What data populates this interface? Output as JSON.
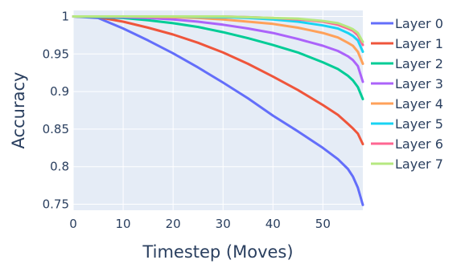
{
  "chart_data": {
    "type": "line",
    "xlabel": "Timestep (Moves)",
    "ylabel": "Accuracy",
    "xlim": [
      0,
      58
    ],
    "ylim": [
      0.742,
      1.008
    ],
    "xticks": [
      0,
      10,
      20,
      30,
      40,
      50
    ],
    "yticks": [
      0.75,
      0.8,
      0.85,
      0.9,
      0.95,
      1
    ],
    "ytick_labels": [
      "0.75",
      "0.8",
      "0.85",
      "0.9",
      "0.95",
      "1"
    ],
    "grid": true,
    "plot_background": "#e5ecf6",
    "legend_position": "right",
    "series": [
      {
        "name": "Layer 0",
        "color": "#636efa",
        "x": [
          0,
          5,
          10,
          15,
          20,
          25,
          30,
          35,
          40,
          45,
          50,
          53,
          55,
          56,
          57,
          58
        ],
        "y": [
          1.0,
          0.998,
          0.984,
          0.968,
          0.951,
          0.932,
          0.912,
          0.891,
          0.868,
          0.847,
          0.825,
          0.81,
          0.797,
          0.787,
          0.772,
          0.749
        ]
      },
      {
        "name": "Layer 1",
        "color": "#ef553b",
        "x": [
          0,
          5,
          10,
          15,
          20,
          25,
          30,
          35,
          40,
          45,
          50,
          53,
          55,
          56,
          57,
          58
        ],
        "y": [
          1.0,
          0.999,
          0.993,
          0.985,
          0.976,
          0.965,
          0.952,
          0.937,
          0.92,
          0.902,
          0.882,
          0.869,
          0.857,
          0.851,
          0.844,
          0.83
        ]
      },
      {
        "name": "Layer 2",
        "color": "#00cc96",
        "x": [
          0,
          10,
          15,
          20,
          25,
          30,
          35,
          40,
          45,
          50,
          53,
          55,
          56,
          57,
          58
        ],
        "y": [
          1.0,
          0.998,
          0.995,
          0.991,
          0.986,
          0.979,
          0.971,
          0.962,
          0.952,
          0.939,
          0.93,
          0.921,
          0.915,
          0.906,
          0.89
        ]
      },
      {
        "name": "Layer 3",
        "color": "#ab63fa",
        "x": [
          0,
          10,
          15,
          20,
          25,
          30,
          35,
          40,
          45,
          50,
          53,
          55,
          56,
          57,
          58
        ],
        "y": [
          1.0,
          0.999,
          0.998,
          0.996,
          0.993,
          0.989,
          0.984,
          0.978,
          0.97,
          0.961,
          0.954,
          0.947,
          0.942,
          0.934,
          0.913
        ]
      },
      {
        "name": "Layer 4",
        "color": "#ffa15a",
        "x": [
          0,
          10,
          20,
          25,
          30,
          35,
          40,
          45,
          50,
          53,
          55,
          56,
          57,
          58
        ],
        "y": [
          1.0,
          1.0,
          0.999,
          0.998,
          0.996,
          0.993,
          0.99,
          0.985,
          0.978,
          0.972,
          0.965,
          0.961,
          0.953,
          0.937
        ]
      },
      {
        "name": "Layer 5",
        "color": "#19d3f3",
        "x": [
          0,
          10,
          20,
          30,
          35,
          40,
          45,
          50,
          53,
          55,
          56,
          57,
          58
        ],
        "y": [
          1.0,
          1.0,
          1.0,
          0.999,
          0.998,
          0.996,
          0.993,
          0.988,
          0.984,
          0.978,
          0.974,
          0.968,
          0.953
        ]
      },
      {
        "name": "Layer 6",
        "color": "#ff6692",
        "x": [
          0,
          10,
          20,
          30,
          35,
          40,
          45,
          50,
          53,
          55,
          56,
          57,
          58
        ],
        "y": [
          1.0,
          1.0,
          1.0,
          1.0,
          0.999,
          0.998,
          0.996,
          0.993,
          0.989,
          0.984,
          0.981,
          0.975,
          0.962
        ]
      },
      {
        "name": "Layer 7",
        "color": "#b6e880",
        "x": [
          0,
          10,
          20,
          30,
          35,
          40,
          45,
          50,
          53,
          55,
          56,
          57,
          58
        ],
        "y": [
          1.0,
          1.0,
          1.0,
          1.0,
          0.999,
          0.998,
          0.997,
          0.994,
          0.991,
          0.986,
          0.983,
          0.978,
          0.966
        ]
      }
    ]
  }
}
